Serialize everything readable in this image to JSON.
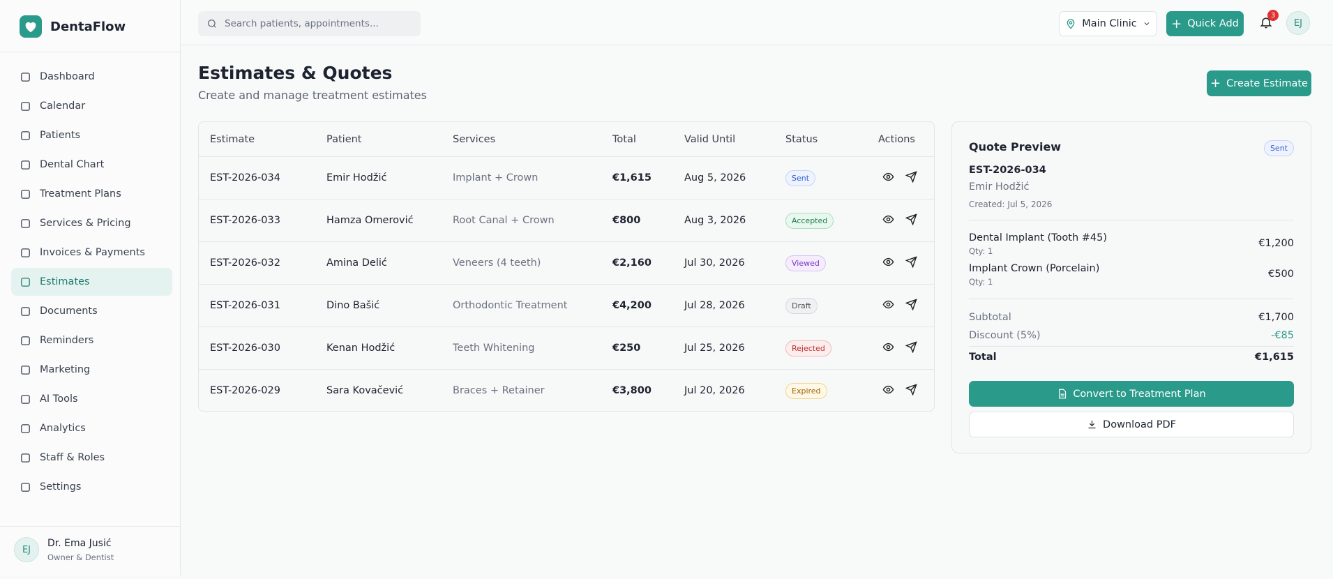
{
  "sidebar": {
    "brand": "DentaFlow",
    "nav": [
      "Dashboard",
      "Calendar",
      "Patients",
      "Dental Chart",
      "Treatment Plans",
      "Services & Pricing",
      "Invoices & Payments",
      "Estimates",
      "Documents",
      "Reminders",
      "Marketing",
      "AI Tools",
      "Analytics",
      "Staff & Roles",
      "Settings"
    ],
    "user": {
      "initials": "EJ",
      "name": "Dr. Ema Jusić",
      "role": "Owner & Dentist"
    }
  },
  "header": {
    "search_placeholder": "Search patients, appointments...",
    "location": "Main Clinic",
    "quick_add": "Quick Add",
    "notifications": "3",
    "avatar": "EJ"
  },
  "page": {
    "title": "Estimates & Quotes",
    "subtitle": "Create and manage treatment estimates",
    "create_button": "Create Estimate"
  },
  "table": {
    "columns": [
      "Estimate",
      "Patient",
      "Services",
      "Total",
      "Valid Until",
      "Status",
      "Actions"
    ],
    "rows": [
      [
        "EST-2026-034",
        "Emir Hodžić",
        "Implant + Crown",
        "€1,615",
        "Aug 5, 2026",
        "Sent"
      ],
      [
        "EST-2026-033",
        "Hamza Omerović",
        "Root Canal + Crown",
        "€800",
        "Aug 3, 2026",
        "Accepted"
      ],
      [
        "EST-2026-032",
        "Amina Delić",
        "Veneers (4 teeth)",
        "€2,160",
        "Jul 30, 2026",
        "Viewed"
      ],
      [
        "EST-2026-031",
        "Dino Bašić",
        "Orthodontic Treatment",
        "€4,200",
        "Jul 28, 2026",
        "Draft"
      ],
      [
        "EST-2026-030",
        "Kenan Hodžić",
        "Teeth Whitening",
        "€250",
        "Jul 25, 2026",
        "Rejected"
      ],
      [
        "EST-2026-029",
        "Sara Kovačević",
        "Braces + Retainer",
        "€3,800",
        "Jul 20, 2026",
        "Expired"
      ]
    ]
  },
  "preview": {
    "title": "Quote Preview",
    "status": "Sent",
    "id": "EST-2026-034",
    "patient": "Emir Hodžić",
    "created": "Created: Jul 5, 2026",
    "items": [
      {
        "name": "Dental Implant (Tooth #45)",
        "qty": "Qty: 1",
        "amount": "€1,200"
      },
      {
        "name": "Implant Crown (Porcelain)",
        "qty": "Qty: 1",
        "amount": "€500"
      }
    ],
    "subtotal_label": "Subtotal",
    "subtotal": "€1,700",
    "discount_label": "Discount (5%)",
    "discount": "-€85",
    "total_label": "Total",
    "total": "€1,615",
    "convert": "Convert to Treatment Plan",
    "download": "Download PDF"
  }
}
